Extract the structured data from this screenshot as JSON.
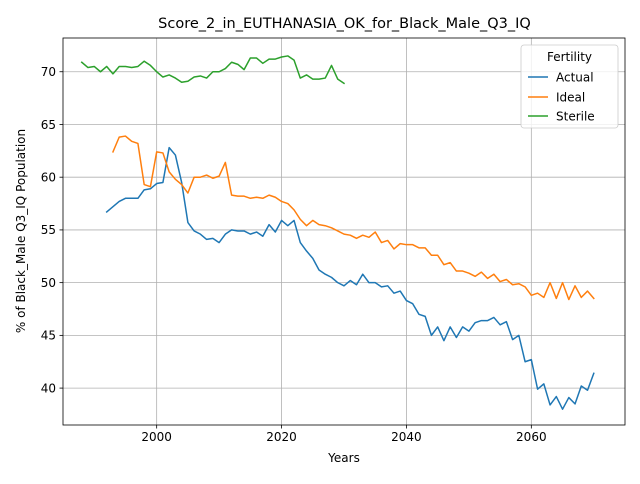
{
  "chart_data": {
    "type": "line",
    "title": "Score_2_in_EUTHANASIA_OK_for_Black_Male_Q3_IQ",
    "xlabel": "Years",
    "ylabel": "% of Black_Male Q3_IQ Population",
    "xlim": [
      1985,
      2075
    ],
    "ylim": [
      36.5,
      73.2
    ],
    "xticks": [
      2000,
      2020,
      2040,
      2060
    ],
    "yticks": [
      40,
      45,
      50,
      55,
      60,
      65,
      70
    ],
    "grid": true,
    "legend": {
      "title": "Fertility",
      "position": "top-right"
    },
    "series": [
      {
        "name": "Actual",
        "color": "#1f77b4",
        "x": [
          1992,
          1993,
          1994,
          1995,
          1996,
          1997,
          1998,
          1999,
          2000,
          2001,
          2002,
          2003,
          2004,
          2005,
          2006,
          2007,
          2008,
          2009,
          2010,
          2011,
          2012,
          2013,
          2014,
          2015,
          2016,
          2017,
          2018,
          2019,
          2020,
          2021,
          2022,
          2023,
          2024,
          2025,
          2026,
          2027,
          2028,
          2029,
          2030,
          2031,
          2032,
          2033,
          2034,
          2035,
          2036,
          2037,
          2038,
          2039,
          2040,
          2041,
          2042,
          2043,
          2044,
          2045,
          2046,
          2047,
          2048,
          2049,
          2050,
          2051,
          2052,
          2053,
          2054,
          2055,
          2056,
          2057,
          2058,
          2059,
          2060,
          2061,
          2062,
          2063,
          2064,
          2065,
          2066,
          2067,
          2068,
          2069,
          2070
        ],
        "y": [
          56.7,
          57.2,
          57.7,
          58.0,
          58.0,
          58.0,
          58.8,
          58.9,
          59.4,
          59.5,
          62.8,
          62.1,
          59.5,
          55.7,
          54.9,
          54.6,
          54.1,
          54.2,
          53.8,
          54.6,
          55.0,
          54.9,
          54.9,
          54.6,
          54.8,
          54.4,
          55.5,
          54.8,
          55.9,
          55.4,
          55.9,
          53.8,
          53.0,
          52.3,
          51.2,
          50.8,
          50.5,
          50.0,
          49.7,
          50.2,
          49.8,
          50.8,
          50.0,
          50.0,
          49.6,
          49.7,
          49.0,
          49.2,
          48.3,
          48.0,
          47.0,
          46.8,
          45.0,
          45.8,
          44.5,
          45.8,
          44.8,
          45.8,
          45.4,
          46.2,
          46.4,
          46.4,
          46.7,
          46.0,
          46.3,
          44.6,
          45.0,
          42.5,
          42.7,
          39.9,
          40.4,
          38.4,
          39.2,
          38.0,
          39.1,
          38.5,
          40.2,
          39.8,
          41.4
        ]
      },
      {
        "name": "Ideal",
        "color": "#ff7f0e",
        "x": [
          1993,
          1994,
          1995,
          1996,
          1997,
          1998,
          1999,
          2000,
          2001,
          2002,
          2003,
          2004,
          2005,
          2006,
          2007,
          2008,
          2009,
          2010,
          2011,
          2012,
          2013,
          2014,
          2015,
          2016,
          2017,
          2018,
          2019,
          2020,
          2021,
          2022,
          2023,
          2024,
          2025,
          2026,
          2027,
          2028,
          2029,
          2030,
          2031,
          2032,
          2033,
          2034,
          2035,
          2036,
          2037,
          2038,
          2039,
          2040,
          2041,
          2042,
          2043,
          2044,
          2045,
          2046,
          2047,
          2048,
          2049,
          2050,
          2051,
          2052,
          2053,
          2054,
          2055,
          2056,
          2057,
          2058,
          2059,
          2060,
          2061,
          2062,
          2063,
          2064,
          2065,
          2066,
          2067,
          2068,
          2069,
          2070
        ],
        "y": [
          62.4,
          63.8,
          63.9,
          63.4,
          63.2,
          59.3,
          59.1,
          62.4,
          62.3,
          60.5,
          59.8,
          59.3,
          58.5,
          60.0,
          60.0,
          60.2,
          59.9,
          60.1,
          61.4,
          58.3,
          58.2,
          58.2,
          58.0,
          58.1,
          58.0,
          58.3,
          58.1,
          57.7,
          57.5,
          56.9,
          56.0,
          55.4,
          55.9,
          55.5,
          55.4,
          55.2,
          54.9,
          54.6,
          54.5,
          54.2,
          54.5,
          54.3,
          54.8,
          53.8,
          54.0,
          53.2,
          53.7,
          53.6,
          53.6,
          53.3,
          53.3,
          52.6,
          52.6,
          51.7,
          51.9,
          51.1,
          51.1,
          50.9,
          50.6,
          51.0,
          50.4,
          50.8,
          50.1,
          50.3,
          49.8,
          49.9,
          49.6,
          48.8,
          49.0,
          48.6,
          50.0,
          48.5,
          50.0,
          48.4,
          49.7,
          48.6,
          49.2,
          48.5
        ]
      },
      {
        "name": "Sterile",
        "color": "#2ca02c",
        "x": [
          1988,
          1989,
          1990,
          1991,
          1992,
          1993,
          1994,
          1995,
          1996,
          1997,
          1998,
          1999,
          2000,
          2001,
          2002,
          2003,
          2004,
          2005,
          2006,
          2007,
          2008,
          2009,
          2010,
          2011,
          2012,
          2013,
          2014,
          2015,
          2016,
          2017,
          2018,
          2019,
          2020,
          2021,
          2022,
          2023,
          2024,
          2025,
          2026,
          2027,
          2028,
          2029,
          2030
        ],
        "y": [
          70.9,
          70.4,
          70.5,
          70.0,
          70.5,
          69.8,
          70.5,
          70.5,
          70.4,
          70.5,
          71.0,
          70.6,
          70.0,
          69.5,
          69.7,
          69.4,
          69.0,
          69.1,
          69.5,
          69.6,
          69.4,
          70.0,
          70.0,
          70.3,
          70.9,
          70.7,
          70.2,
          71.3,
          71.3,
          70.8,
          71.2,
          71.2,
          71.4,
          71.5,
          71.1,
          69.4,
          69.7,
          69.3,
          69.3,
          69.4,
          70.6,
          69.3,
          68.9
        ]
      }
    ]
  }
}
